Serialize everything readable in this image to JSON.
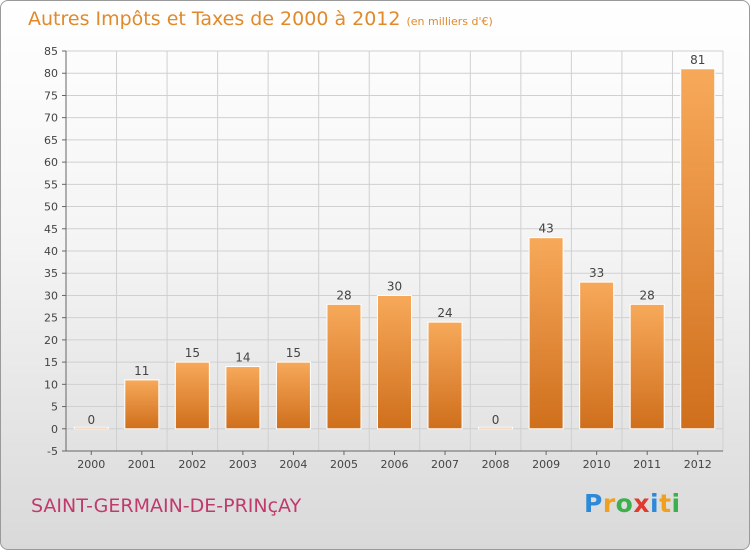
{
  "title": "Autres Impôts et Taxes de 2000 à 2012",
  "subtitle": "(en milliers d'€)",
  "commune": "SAINT-GERMAIN-DE-PRINçAY",
  "brand": {
    "letters": [
      "P",
      "r",
      "o",
      "x",
      "i",
      "t",
      "i"
    ],
    "colors": [
      "#2e8ad8",
      "#f0a020",
      "#3cb04a",
      "#e03b2e",
      "#2e8ad8",
      "#f0a020",
      "#3cb04a"
    ]
  },
  "colors": {
    "bar_top": "#f7a95a",
    "bar_bottom": "#cf6f1c",
    "bar_edge": "#ffffff",
    "title": "#e08a2c",
    "commune": "#c03a6b",
    "grid": "#d0d0d0"
  },
  "chart_data": {
    "type": "bar",
    "categories": [
      "2000",
      "2001",
      "2002",
      "2003",
      "2004",
      "2005",
      "2006",
      "2007",
      "2008",
      "2009",
      "2010",
      "2011",
      "2012"
    ],
    "values": [
      0,
      11,
      15,
      14,
      15,
      28,
      30,
      24,
      0,
      43,
      33,
      28,
      81
    ],
    "ylim": [
      -5,
      85
    ],
    "yticks": [
      -5,
      0,
      5,
      10,
      15,
      20,
      25,
      30,
      35,
      40,
      45,
      50,
      55,
      60,
      65,
      70,
      75,
      80,
      85
    ],
    "grid": true
  }
}
